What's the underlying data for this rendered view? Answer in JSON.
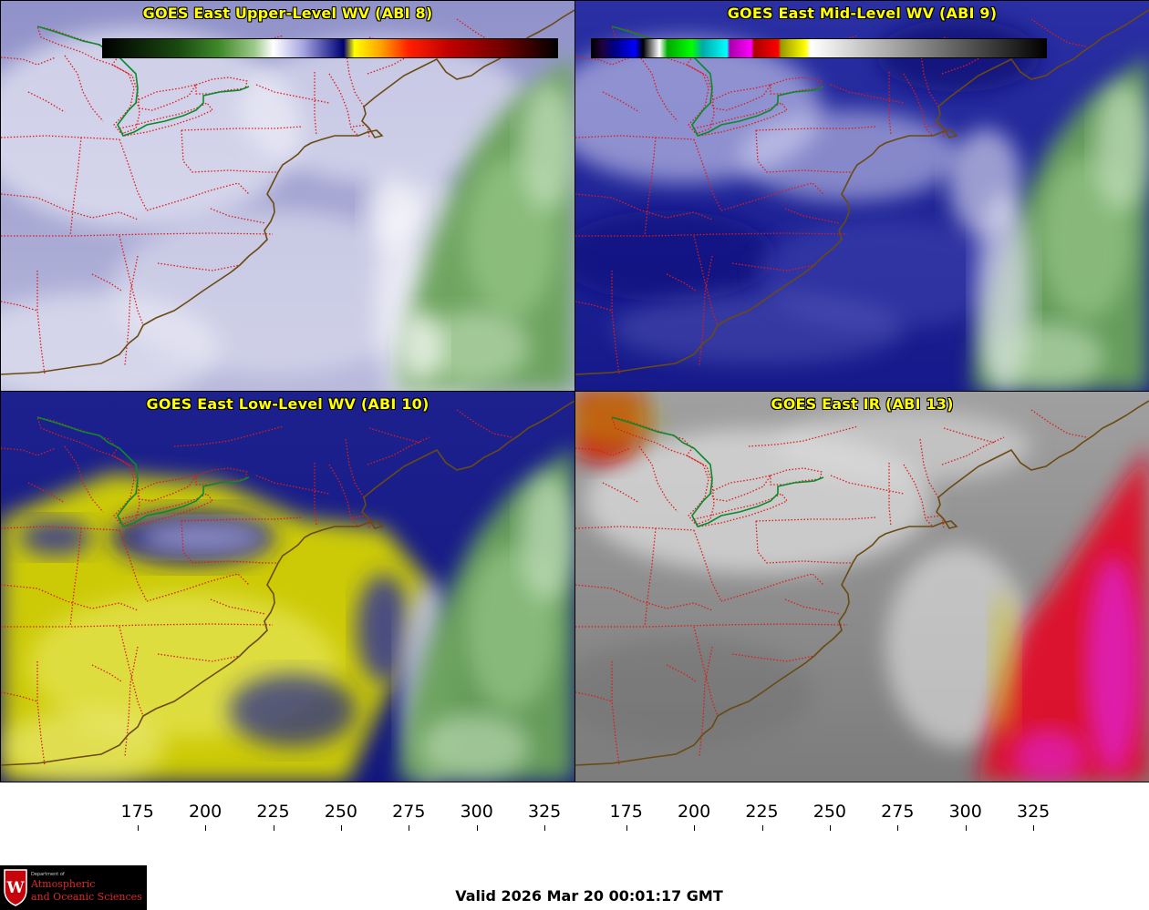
{
  "panels": [
    {
      "id": "p1",
      "title": "GOES East Upper-Level WV (ABI 8)",
      "style": "wv_upper"
    },
    {
      "id": "p2",
      "title": "GOES East Mid-Level WV (ABI 9)",
      "style": "wv_mid"
    },
    {
      "id": "p3",
      "title": "GOES East Low-Level WV (ABI 10)",
      "style": "wv_low"
    },
    {
      "id": "p4",
      "title": "GOES East IR (ABI 13)",
      "style": "ir"
    }
  ],
  "colorbars": {
    "wv": {
      "ticks": [
        "175",
        "200",
        "225",
        "250",
        "275",
        "300",
        "325"
      ],
      "range": [
        162,
        330
      ],
      "stops": [
        [
          162,
          "#000000"
        ],
        [
          190,
          "#1a4a10"
        ],
        [
          205,
          "#3f8a2a"
        ],
        [
          218,
          "#9dc98a"
        ],
        [
          225,
          "#ffffff"
        ],
        [
          236,
          "#a6a6e0"
        ],
        [
          247,
          "#2b2b95"
        ],
        [
          251,
          "#000070"
        ],
        [
          255,
          "#ffff00"
        ],
        [
          265,
          "#ffa000"
        ],
        [
          275,
          "#ff2000"
        ],
        [
          290,
          "#c00000"
        ],
        [
          310,
          "#700000"
        ],
        [
          330,
          "#000000"
        ]
      ]
    },
    "ir": {
      "ticks": [
        "175",
        "200",
        "225",
        "250",
        "275",
        "300",
        "325"
      ],
      "range": [
        162,
        330
      ],
      "stops": [
        [
          162,
          "#000000"
        ],
        [
          166,
          "#200040"
        ],
        [
          170,
          "#000080"
        ],
        [
          178,
          "#0000ff"
        ],
        [
          181,
          "#000000"
        ],
        [
          184,
          "#808080"
        ],
        [
          187,
          "#ffffff"
        ],
        [
          190,
          "#00aa00"
        ],
        [
          199,
          "#00ff00"
        ],
        [
          203,
          "#00aaaa"
        ],
        [
          212,
          "#00ffff"
        ],
        [
          213,
          "#aa00aa"
        ],
        [
          221,
          "#ff00ff"
        ],
        [
          222,
          "#aa0000"
        ],
        [
          231,
          "#ff0000"
        ],
        [
          232,
          "#999900"
        ],
        [
          241,
          "#ffff00"
        ],
        [
          243,
          "#ffffff"
        ],
        [
          330,
          "#000000"
        ]
      ]
    }
  },
  "valid_text": "Valid 2026 Mar 20 00:01:17 GMT",
  "logo": {
    "department": "Department of",
    "line1": "Atmospheric",
    "line2": "and Oceanic Sciences",
    "initial": "W"
  },
  "colors": {
    "coastline": "#6b4a12",
    "state_borders": "#e01a1a",
    "international_border": "#0a8a2a",
    "title": "#ffff00"
  }
}
